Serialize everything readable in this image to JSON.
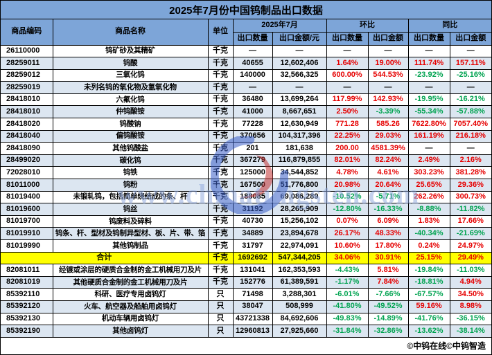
{
  "title": "2025年7月份中国钨制品出口数据",
  "header": {
    "code": "商品编码",
    "name": "商品名称",
    "unit": "单位",
    "group_month": "2025年7月",
    "group_mom": "环比",
    "group_yoy": "同比",
    "sub": [
      "出口数量",
      "出口金额/元",
      "出口数量",
      "出口金额",
      "出口数量",
      "出口金额"
    ]
  },
  "colors": {
    "header-bg": "#7da5d8",
    "row-alt": "#dce6f1",
    "total-bg": "#ffff00",
    "positive": "#e60000",
    "negative": "#00a350"
  },
  "rows": [
    {
      "code": "26110000",
      "name": "钨矿砂及其精矿",
      "unit": "千克",
      "qty": "—",
      "amt": "—",
      "mom_qty": "—",
      "mom_amt": "—",
      "yoy_qty": "—",
      "yoy_amt": "—"
    },
    {
      "code": "28259011",
      "name": "钨酸",
      "unit": "千克",
      "qty": "40655",
      "amt": "12,602,406",
      "mom_qty": "1.64%",
      "mom_amt": "19.00%",
      "yoy_qty": "111.74%",
      "yoy_amt": "157.11%"
    },
    {
      "code": "28259012",
      "name": "三氧化钨",
      "unit": "千克",
      "qty": "140000",
      "amt": "32,566,325",
      "mom_qty": "600.00%",
      "mom_amt": "544.53%",
      "yoy_qty": "-23.92%",
      "yoy_amt": "-25.16%"
    },
    {
      "code": "28259019",
      "name": "未列名钨的氧化物及氢氧化物",
      "unit": "千克",
      "qty": "—",
      "amt": "—",
      "mom_qty": "—",
      "mom_amt": "—",
      "yoy_qty": "—",
      "yoy_amt": "—"
    },
    {
      "code": "28418010",
      "name": "六氟化钨",
      "unit": "千克",
      "qty": "36480",
      "amt": "13,699,264",
      "mom_qty": "117.99%",
      "mom_amt": "142.93%",
      "yoy_qty": "-19.95%",
      "yoy_amt": "-16.21%"
    },
    {
      "code": "28418010",
      "name": "仲钨酸铵",
      "unit": "千克",
      "qty": "41000",
      "amt": "8,667,651",
      "mom_qty": "2.50%",
      "mom_amt": "-3.39%",
      "yoy_qty": "-55.34%",
      "yoy_amt": "-57.88%"
    },
    {
      "code": "28418020",
      "name": "钨酸钠",
      "unit": "千克",
      "qty": "77228",
      "amt": "12,630,949",
      "mom_qty": "771.28",
      "mom_amt": "585.26",
      "yoy_qty": "7622.80%",
      "yoy_amt": "7057.40%"
    },
    {
      "code": "28418040",
      "name": "偏钨酸铵",
      "unit": "千克",
      "qty": "370656",
      "amt": "104,317,396",
      "mom_qty": "22.25%",
      "mom_amt": "29.03%",
      "yoy_qty": "161.19%",
      "yoy_amt": "216.18%"
    },
    {
      "code": "28418090",
      "name": "其他钨酸盐",
      "unit": "千克",
      "qty": "201",
      "amt": "181,638",
      "mom_qty": "200.00",
      "mom_amt": "4581.39%",
      "yoy_qty": "—",
      "yoy_amt": "—"
    },
    {
      "code": "28499020",
      "name": "碳化钨",
      "unit": "千克",
      "qty": "367279",
      "amt": "116,879,855",
      "mom_qty": "82.01%",
      "mom_amt": "82.24%",
      "yoy_qty": "2.49%",
      "yoy_amt": "2.16%"
    },
    {
      "code": "72028010",
      "name": "钨铁",
      "unit": "千克",
      "qty": "125000",
      "amt": "34,544,852",
      "mom_qty": "4.78%",
      "mom_amt": "4.61%",
      "yoy_qty": "303.23%",
      "yoy_amt": "381.28%"
    },
    {
      "code": "81011000",
      "name": "钨粉",
      "unit": "千克",
      "qty": "167500",
      "amt": "51,776,800",
      "mom_qty": "20.98%",
      "mom_amt": "20.64%",
      "yoy_qty": "25.65%",
      "yoy_amt": "29.36%"
    },
    {
      "code": "81019400",
      "name": "未锻轧钨，包括简单烧结成的条、杆",
      "unit": "千克",
      "qty": "188085",
      "amt": "69,086,289",
      "mom_qty": "-10.52%",
      "mom_amt": "-5.71%",
      "yoy_qty": "262.26%",
      "yoy_amt": "300.73%"
    },
    {
      "code": "81019600",
      "name": "钨丝",
      "unit": "千克",
      "qty": "31192",
      "amt": "28,265,909",
      "mom_qty": "-12.80%",
      "mom_amt": "-16.33%",
      "yoy_qty": "-8.88%",
      "yoy_amt": "-11.82%"
    },
    {
      "code": "81019700",
      "name": "钨废料及碎料",
      "unit": "千克",
      "qty": "40730",
      "amt": "15,256,102",
      "mom_qty": "0.07%",
      "mom_amt": "6.09%",
      "yoy_qty": "1.83%",
      "yoy_amt": "17.66%"
    },
    {
      "code": "81019910",
      "name": "钨条、杆、型材及钨制异型材、板、片、带、箔",
      "unit": "千克",
      "qty": "34889",
      "amt": "23,894,678",
      "mom_qty": "26.17%",
      "mom_amt": "48.33%",
      "yoy_qty": "-40.34%",
      "yoy_amt": "-21.69%"
    },
    {
      "code": "81019990",
      "name": "其他钨制品",
      "unit": "千克",
      "qty": "31797",
      "amt": "22,974,091",
      "mom_qty": "10.60%",
      "mom_amt": "17.80%",
      "yoy_qty": "0.24%",
      "yoy_amt": "24.97%"
    },
    {
      "total": true,
      "code": "",
      "name": "合计",
      "unit": "千克",
      "qty": "1692692",
      "amt": "547,344,205",
      "mom_qty": "34.06%",
      "mom_amt": "30.91%",
      "yoy_qty": "25.15%",
      "yoy_amt": "29.49%"
    },
    {
      "code": "82081011",
      "name": "经镀或涂层的硬质合金制的金工机械用刀及片",
      "unit": "千克",
      "qty": "131041",
      "amt": "162,353,593",
      "mom_qty": "-4.43%",
      "mom_amt": "5.81%",
      "yoy_qty": "-19.84%",
      "yoy_amt": "-11.03%"
    },
    {
      "code": "82081019",
      "name": "其他硬质合金制的金工机械用刀及片",
      "unit": "千克",
      "qty": "152776",
      "amt": "61,389,591",
      "mom_qty": "-1.17%",
      "mom_amt": "7.84%",
      "yoy_qty": "-18.81%",
      "yoy_amt": "4.94%"
    },
    {
      "code": "85392110",
      "name": "科研、医疗专用卤钨灯",
      "unit": "只",
      "qty": "71498",
      "amt": "3,288,301",
      "mom_qty": "-6.01%",
      "mom_amt": "-7.66%",
      "yoy_qty": "-67.57%",
      "yoy_amt": "34.50%"
    },
    {
      "code": "85392120",
      "name": "火车、航空器及船舶用卤钨灯",
      "unit": "只",
      "qty": "38047",
      "amt": "508,999",
      "mom_qty": "-41.80%",
      "mom_amt": "-49.52%",
      "yoy_qty": "59.16%",
      "yoy_amt": "8.98%"
    },
    {
      "code": "85392130",
      "name": "机动车辆用卤钨灯",
      "unit": "只",
      "qty": "43721338",
      "amt": "84,692,606",
      "mom_qty": "-49.83%",
      "mom_amt": "-14.89%",
      "yoy_qty": "-41.76%",
      "yoy_amt": "-36.15%"
    },
    {
      "code": "85392190",
      "name": "其他卤钨灯",
      "unit": "只",
      "qty": "12960813",
      "amt": "27,925,660",
      "mom_qty": "-31.84%",
      "mom_amt": "-32.86%",
      "yoy_qty": "-13.62%",
      "yoy_amt": "-38.14%"
    }
  ],
  "footer": {
    "credit": "©中钨在线©中钨智造"
  },
  "watermark": {
    "text": "www.chinatungsten.com"
  }
}
